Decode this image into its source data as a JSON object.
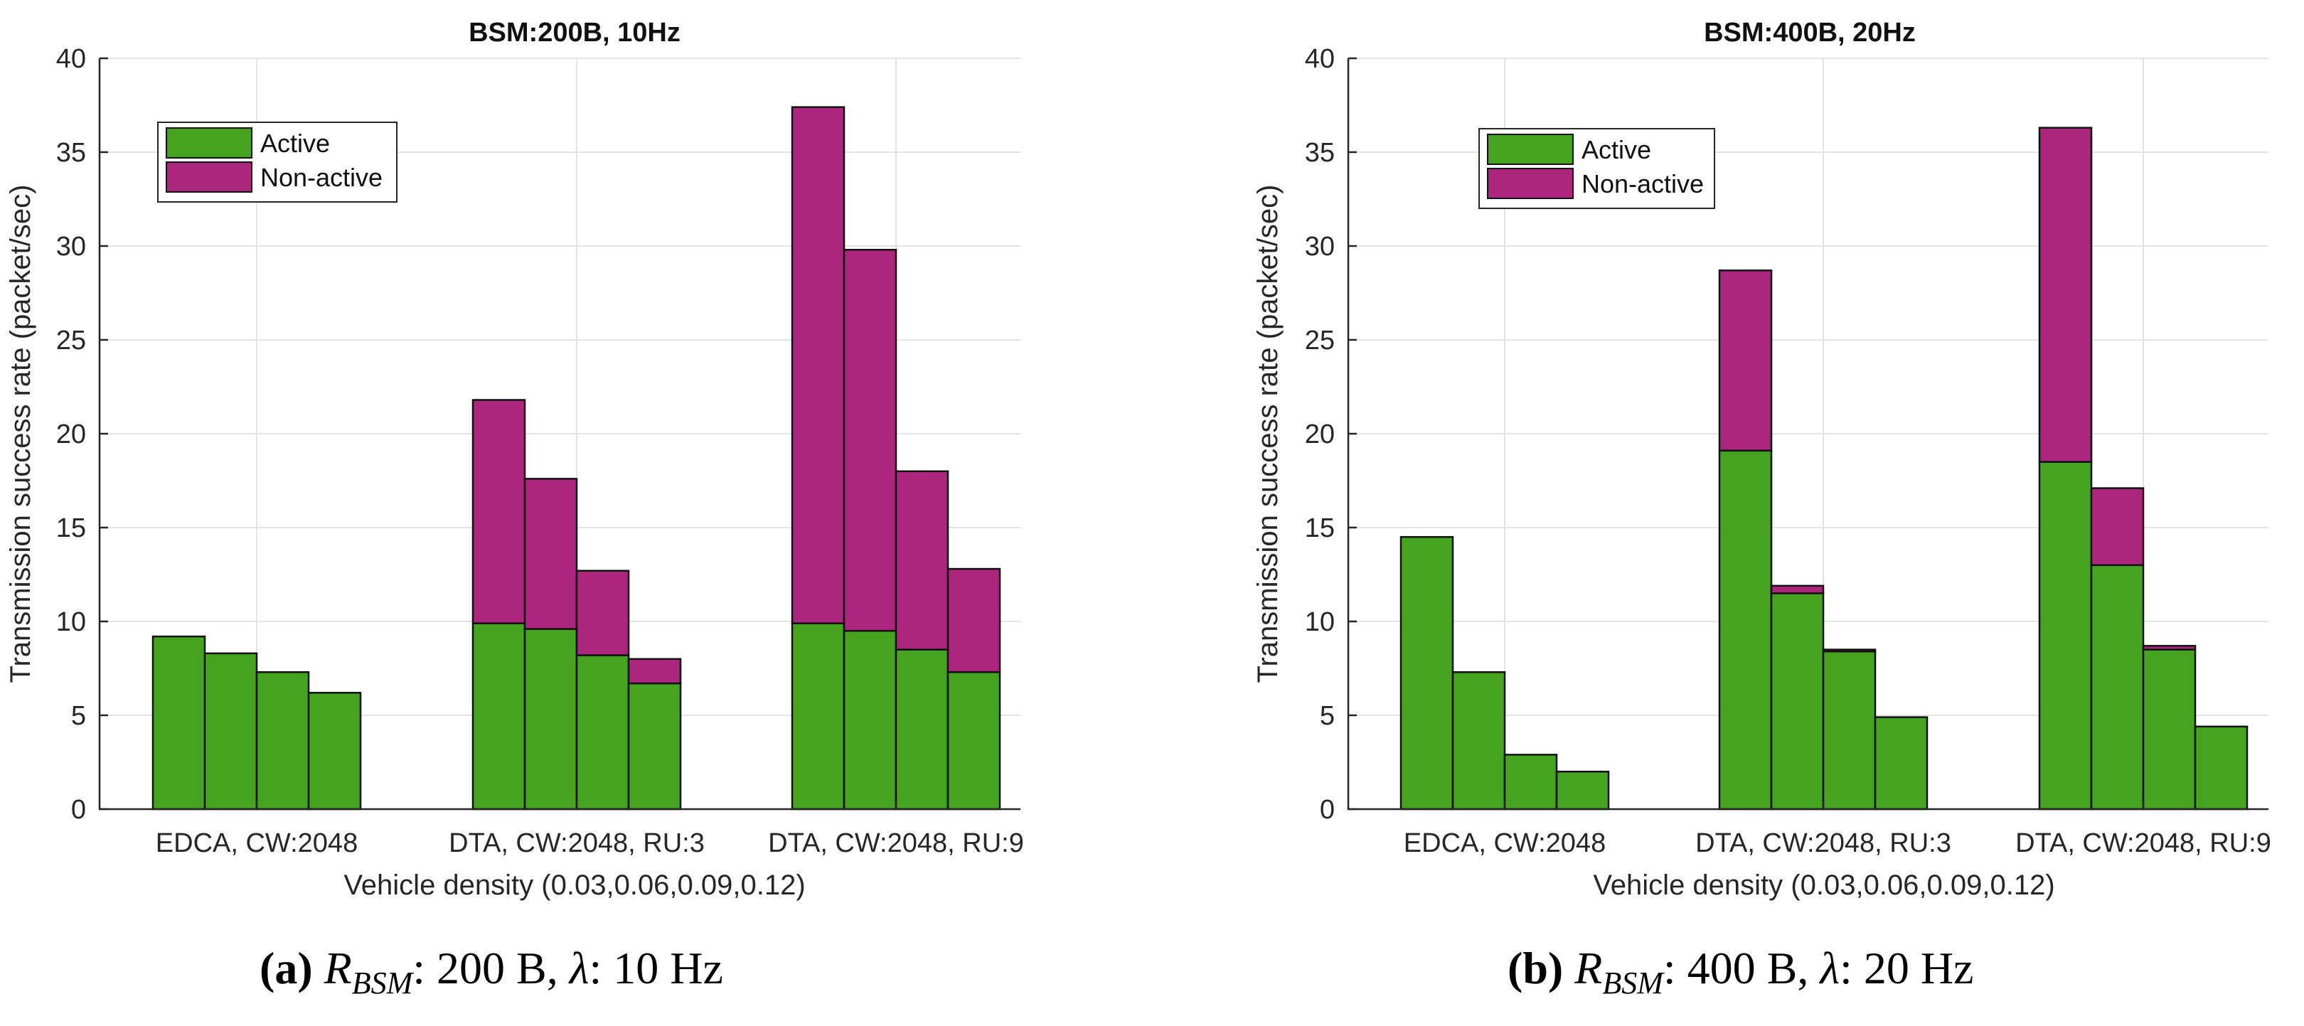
{
  "chart_data": [
    {
      "type": "bar",
      "stacked": true,
      "title": "BSM:200B, 10Hz",
      "xlabel": "Vehicle density (0.03,0.06,0.09,0.12)",
      "ylabel": "Transmission success rate (packet/sec)",
      "ylim": [
        0,
        40
      ],
      "yticks": [
        "0",
        "5",
        "10",
        "15",
        "20",
        "25",
        "30",
        "35",
        "40"
      ],
      "grid": true,
      "legend_position": "top-left",
      "categories": [
        "EDCA, CW:2048",
        "DTA, CW:2048, RU:3",
        "DTA, CW:2048, RU:9"
      ],
      "densities": [
        0.03,
        0.06,
        0.09,
        0.12
      ],
      "series": [
        {
          "name": "Active",
          "color": "#45a31f",
          "values": [
            [
              9.2,
              8.3,
              7.3,
              6.2
            ],
            [
              9.9,
              9.6,
              8.2,
              6.7
            ],
            [
              9.9,
              9.5,
              8.5,
              7.3
            ]
          ]
        },
        {
          "name": "Non-active",
          "color": "#ad267d",
          "values": [
            [
              0,
              0,
              0,
              0
            ],
            [
              11.9,
              8.0,
              4.5,
              1.3
            ],
            [
              27.5,
              20.3,
              9.5,
              5.5
            ]
          ]
        }
      ],
      "caption": {
        "letter": "(a)",
        "text": ": 200 B, ",
        "symbol": "R",
        "subscript": "BSM",
        "lambda": "λ",
        "rate": ": 10 Hz"
      }
    },
    {
      "type": "bar",
      "stacked": true,
      "title": "BSM:400B, 20Hz",
      "xlabel": "Vehicle density (0.03,0.06,0.09,0.12)",
      "ylabel": "Transmission success rate (packet/sec)",
      "ylim": [
        0,
        40
      ],
      "yticks": [
        "0",
        "5",
        "10",
        "15",
        "20",
        "25",
        "30",
        "35",
        "40"
      ],
      "grid": true,
      "legend_position": "top-left",
      "categories": [
        "EDCA, CW:2048",
        "DTA, CW:2048, RU:3",
        "DTA, CW:2048, RU:9"
      ],
      "densities": [
        0.03,
        0.06,
        0.09,
        0.12
      ],
      "series": [
        {
          "name": "Active",
          "color": "#45a31f",
          "values": [
            [
              14.5,
              7.3,
              2.9,
              2.0
            ],
            [
              19.1,
              11.5,
              8.4,
              4.9
            ],
            [
              18.5,
              13.0,
              8.5,
              4.4
            ]
          ]
        },
        {
          "name": "Non-active",
          "color": "#ad267d",
          "values": [
            [
              0,
              0,
              0,
              0
            ],
            [
              9.6,
              0.4,
              0.1,
              0
            ],
            [
              17.8,
              4.1,
              0.2,
              0
            ]
          ]
        }
      ],
      "caption": {
        "letter": "(b)",
        "text": ": 400 B, ",
        "symbol": "R",
        "subscript": "BSM",
        "lambda": "λ",
        "rate": ": 20 Hz"
      }
    }
  ]
}
